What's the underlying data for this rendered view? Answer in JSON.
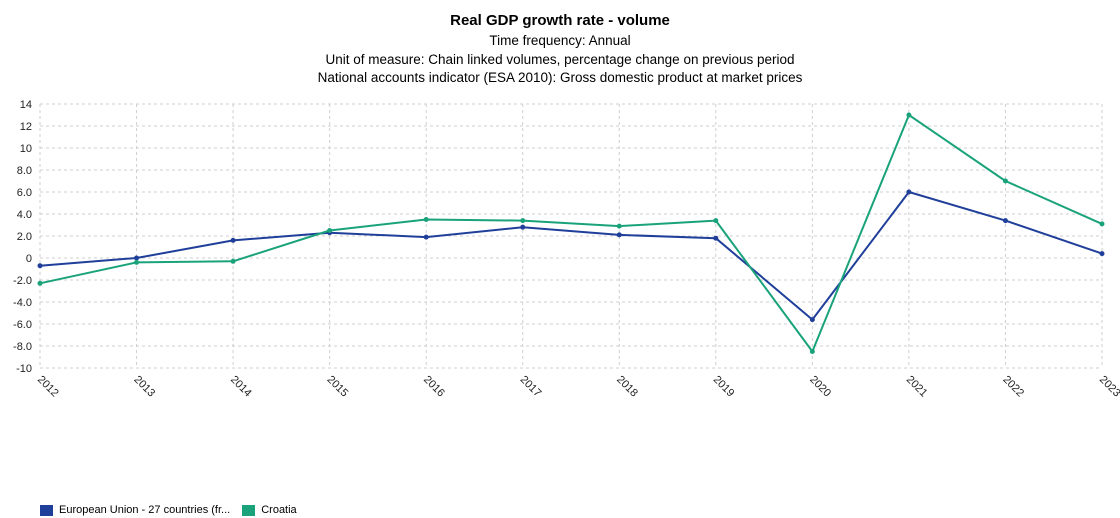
{
  "chart_data": {
    "type": "line",
    "title": "Real GDP growth rate - volume",
    "subtitles": [
      "Time frequency: Annual",
      "Unit of measure: Chain linked volumes, percentage change on previous period",
      "National accounts indicator (ESA 2010): Gross domestic product at market prices"
    ],
    "categories": [
      "2012",
      "2013",
      "2014",
      "2015",
      "2016",
      "2017",
      "2018",
      "2019",
      "2020",
      "2021",
      "2022",
      "2023"
    ],
    "ylim": [
      -10,
      14
    ],
    "yticks": [
      14,
      12,
      10,
      8,
      6,
      4,
      2,
      0,
      -2,
      -4,
      -6,
      -8,
      -10
    ],
    "ytick_labels": [
      "14",
      "12",
      "10",
      "8.0",
      "6.0",
      "4.0",
      "2.0",
      "0",
      "-2.0",
      "-4.0",
      "-6.0",
      "-8.0",
      "-10"
    ],
    "grid": true,
    "legend_position": "bottom-left",
    "series": [
      {
        "name": "European Union - 27 countries (fr...",
        "color": "#1f3f9a",
        "values": [
          -0.7,
          0.0,
          1.6,
          2.3,
          1.9,
          2.8,
          2.1,
          1.8,
          -5.6,
          6.0,
          3.4,
          0.4
        ]
      },
      {
        "name": "Croatia",
        "color": "#1aa37a",
        "values": [
          -2.3,
          -0.4,
          -0.3,
          2.5,
          3.5,
          3.4,
          2.9,
          3.4,
          -8.5,
          13.0,
          7.0,
          3.1
        ]
      }
    ]
  }
}
